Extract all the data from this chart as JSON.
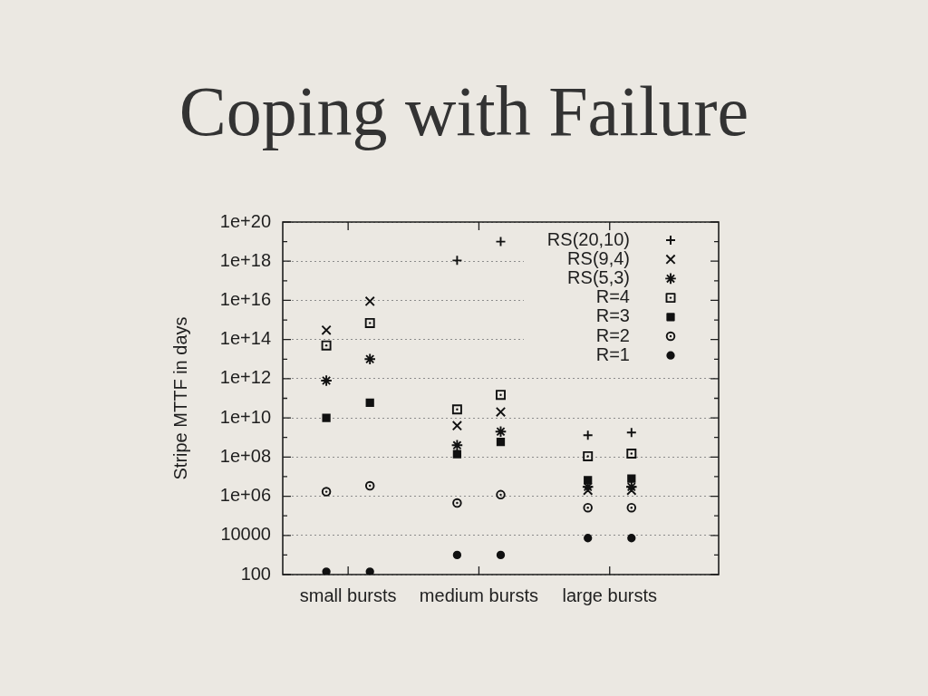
{
  "chart_data": {
    "type": "scatter",
    "title": "Coping with Failure",
    "ylabel": "Stripe MTTF in days",
    "categories": [
      null,
      null,
      null,
      "small bursts",
      null,
      null,
      null,
      null,
      null,
      "medium bursts",
      null,
      null,
      null,
      null,
      null,
      "large bursts",
      null,
      null,
      null,
      null,
      null
    ],
    "ylim": [
      100,
      1e+20
    ],
    "yticks": [
      100,
      {
        "value": 1000,
        "label": null
      },
      10000,
      {
        "value": 100000,
        "label": null
      },
      {
        "value": 1000000.0,
        "label": "1e+06"
      },
      {
        "value": 10000000.0,
        "label": null
      },
      {
        "value": 100000000.0,
        "label": "1e+08"
      },
      {
        "value": 1000000000.0,
        "label": null
      },
      {
        "value": 10000000000.0,
        "label": "1e+10"
      },
      {
        "value": 100000000000.0,
        "label": null
      },
      {
        "value": 1000000000000.0,
        "label": "1e+12"
      },
      {
        "value": 10000000000000.0,
        "label": null
      },
      {
        "value": 100000000000000.0,
        "label": "1e+14"
      },
      {
        "value": 1000000000000000.0,
        "label": null
      },
      {
        "value": 1e+16,
        "label": "1e+16"
      },
      {
        "value": 1e+17,
        "label": null
      },
      {
        "value": 1e+18,
        "label": "1e+18"
      },
      {
        "value": 1e+19,
        "label": null
      },
      {
        "value": 1e+20,
        "label": "1e+20"
      }
    ],
    "log": true,
    "grid": "y",
    "legend": "top right",
    "series": [
      {
        "name": "RS(20,10)",
        "color": "#111111",
        "marker": "plus",
        "values": [
          null,
          null,
          null,
          null,
          null,
          null,
          null,
          null,
          1.1e+18,
          null,
          1e+19,
          null,
          null,
          null,
          1300000000.0,
          null,
          1800000000.0,
          null,
          null,
          null,
          null
        ]
      },
      {
        "name": "RS(9,4)",
        "color": "#111111",
        "marker": "cross",
        "values": [
          null,
          null,
          300000000000000.0,
          null,
          9000000000000000.0,
          null,
          null,
          null,
          4000000000.0,
          null,
          20000000000.0,
          null,
          null,
          null,
          2000000.0,
          null,
          2000000.0,
          null,
          null,
          null,
          null
        ]
      },
      {
        "name": "RS(5,3)",
        "color": "#111111",
        "marker": "cross-asterisk",
        "values": [
          null,
          null,
          800000000000.0,
          null,
          10000000000000.0,
          null,
          null,
          null,
          400000000.0,
          null,
          2000000000.0,
          null,
          null,
          null,
          3000000.0,
          null,
          3000000.0,
          null,
          null,
          null,
          null
        ]
      },
      {
        "name": "R=4",
        "color": "#111111",
        "marker": "square-dot",
        "values": [
          null,
          null,
          50000000000000.0,
          null,
          700000000000000.0,
          null,
          null,
          null,
          27000000000.0,
          null,
          150000000000.0,
          null,
          null,
          null,
          110000000.0,
          null,
          150000000.0,
          null,
          null,
          null,
          null
        ]
      },
      {
        "name": "R=3",
        "color": "#111111",
        "marker": "square",
        "values": [
          null,
          null,
          10000000000.0,
          null,
          60000000000.0,
          null,
          null,
          null,
          140000000.0,
          null,
          600000000.0,
          null,
          null,
          null,
          6500000.0,
          null,
          8000000.0,
          null,
          null,
          null,
          null
        ]
      },
      {
        "name": "R=2",
        "color": "#111111",
        "marker": "circle-dot",
        "values": [
          null,
          null,
          1700000.0,
          null,
          3400000.0,
          null,
          null,
          null,
          450000.0,
          null,
          1200000.0,
          null,
          null,
          null,
          260000.0,
          null,
          260000.0,
          null,
          null,
          null,
          null
        ]
      },
      {
        "name": "R=1",
        "color": "#111111",
        "marker": "circle",
        "values": [
          null,
          null,
          140,
          null,
          140,
          null,
          null,
          null,
          1000,
          null,
          1000,
          null,
          null,
          null,
          7300,
          null,
          7300,
          null,
          null,
          null,
          null
        ]
      }
    ]
  }
}
